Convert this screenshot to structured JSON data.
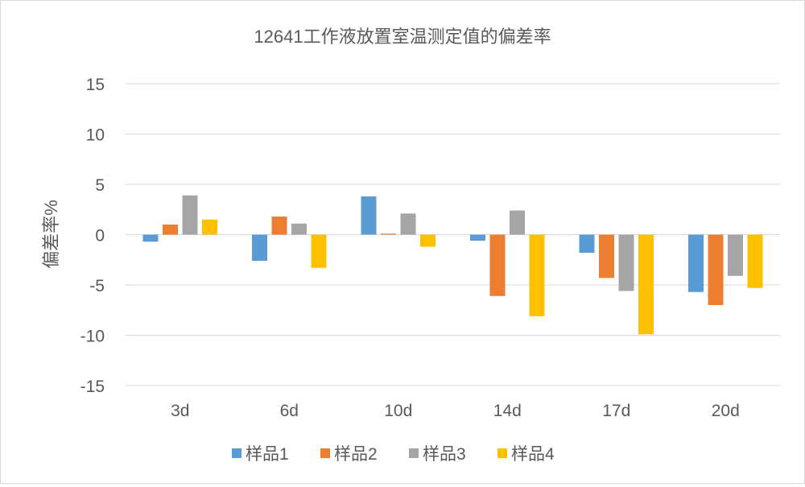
{
  "chart_data": {
    "type": "bar",
    "title": "12641工作液放置室温测定值的偏差率",
    "xlabel": "",
    "ylabel": "偏差率%",
    "ylim": [
      -15,
      15
    ],
    "yticks": [
      15,
      10,
      5,
      0,
      -5,
      -10,
      -15
    ],
    "ytick_labels": [
      "15",
      "10",
      "5",
      "0",
      "-5",
      "-10",
      "-15"
    ],
    "grid": true,
    "legend_position": "bottom",
    "categories": [
      "3d",
      "6d",
      "10d",
      "14d",
      "17d",
      "20d"
    ],
    "series": [
      {
        "name": "样品1",
        "color": "#5b9bd5",
        "values": [
          -0.7,
          -2.6,
          3.8,
          -0.6,
          -1.8,
          -5.7
        ]
      },
      {
        "name": "样品2",
        "color": "#ed7d31",
        "values": [
          1.0,
          1.8,
          0.1,
          -6.1,
          -4.3,
          -7.0
        ]
      },
      {
        "name": "样品3",
        "color": "#a5a5a5",
        "values": [
          3.9,
          1.1,
          2.1,
          2.4,
          -5.6,
          -4.1
        ]
      },
      {
        "name": "样品4",
        "color": "#ffc000",
        "values": [
          1.5,
          -3.3,
          -1.2,
          -8.1,
          -9.9,
          -5.3
        ]
      }
    ]
  }
}
